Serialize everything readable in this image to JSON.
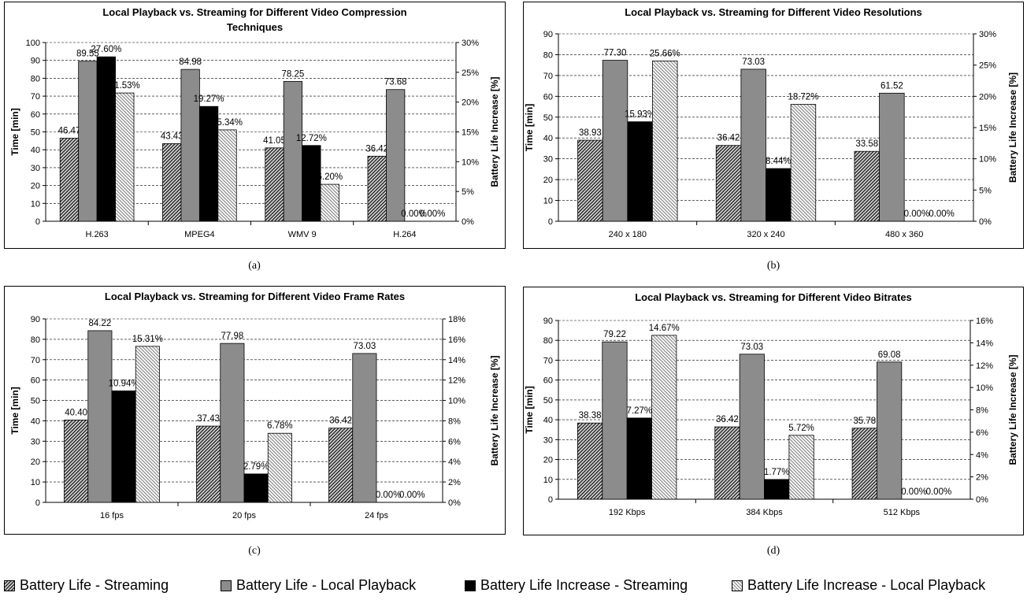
{
  "legend": [
    {
      "label": "Battery Life - Streaming",
      "pattern": "diag-dark"
    },
    {
      "label": "Battery Life - Local Playback",
      "pattern": "gray"
    },
    {
      "label": "Battery Life Increase - Streaming",
      "pattern": "black"
    },
    {
      "label": "Battery Life Increase - Local Playback",
      "pattern": "diag-light"
    }
  ],
  "colors": {
    "gray": "#8c8c8c",
    "black": "#000000",
    "dark_hatch": "#333333",
    "light_hatch": "#888888"
  },
  "captions": [
    "(a)",
    "(b)",
    "(c)",
    "(d)"
  ],
  "chart_data": [
    {
      "type": "bar",
      "title": [
        "Local Playback vs. Streaming for Different Video Compression",
        "Techniques"
      ],
      "ylabel": "Time [min]",
      "y2label": "Battery Life Increase [%]",
      "categories": [
        "H.263",
        "MPEG4",
        "WMV 9",
        "H.264"
      ],
      "ylim": [
        0,
        100
      ],
      "yticks": [
        0,
        10,
        20,
        30,
        40,
        50,
        60,
        70,
        80,
        90,
        100
      ],
      "y2lim": [
        0,
        30
      ],
      "y2ticks": [
        0,
        5,
        10,
        15,
        20,
        25,
        30
      ],
      "grid": true,
      "series": [
        {
          "name": "Battery Life - Streaming",
          "axis": "left",
          "values": [
            46.47,
            43.43,
            41.05,
            36.42
          ],
          "labels": [
            "46.47",
            "43.43",
            "41.05",
            "36.42"
          ]
        },
        {
          "name": "Battery Life - Local Playback",
          "axis": "left",
          "values": [
            89.55,
            84.98,
            78.25,
            73.68
          ],
          "labels": [
            "89.55",
            "84.98",
            "78.25",
            "73.68"
          ]
        },
        {
          "name": "Battery Life Increase - Streaming",
          "axis": "right",
          "values": [
            27.6,
            19.27,
            12.72,
            0
          ],
          "labels": [
            "27.60%",
            "19.27%",
            "12.72%",
            "0.00%"
          ]
        },
        {
          "name": "Battery Life Increase - Local Playback",
          "axis": "right",
          "values": [
            21.53,
            15.34,
            6.2,
            0
          ],
          "labels": [
            "21.53%",
            "15.34%",
            "6.20%",
            "0.00%"
          ]
        }
      ]
    },
    {
      "type": "bar",
      "title": [
        "Local Playback vs. Streaming for Different Video Resolutions"
      ],
      "ylabel": "Time [min]",
      "y2label": "Battery Life Increase [%]",
      "categories": [
        "240 x 180",
        "320 x 240",
        "480 x 360"
      ],
      "ylim": [
        0,
        90
      ],
      "yticks": [
        0,
        10,
        20,
        30,
        40,
        50,
        60,
        70,
        80,
        90
      ],
      "y2lim": [
        0,
        30
      ],
      "y2ticks": [
        0,
        5,
        10,
        15,
        20,
        25,
        30
      ],
      "grid": true,
      "series": [
        {
          "name": "Battery Life - Streaming",
          "axis": "left",
          "values": [
            38.93,
            36.42,
            33.58
          ],
          "labels": [
            "38.93",
            "36.42",
            "33.58"
          ]
        },
        {
          "name": "Battery Life - Local Playback",
          "axis": "left",
          "values": [
            77.3,
            73.03,
            61.52
          ],
          "labels": [
            "77.30",
            "73.03",
            "61.52"
          ]
        },
        {
          "name": "Battery Life Increase - Streaming",
          "axis": "right",
          "values": [
            15.93,
            8.44,
            0
          ],
          "labels": [
            "15.93%",
            "8.44%",
            "0.00%"
          ]
        },
        {
          "name": "Battery Life Increase - Local Playback",
          "axis": "right",
          "values": [
            25.66,
            18.72,
            0
          ],
          "labels": [
            "25.66%",
            "18.72%",
            "0.00%"
          ]
        }
      ]
    },
    {
      "type": "bar",
      "title": [
        "Local Playback vs. Streaming for Different Video Frame Rates"
      ],
      "ylabel": "Time [min]",
      "y2label": "Battery Life Increase [%]",
      "categories": [
        "16 fps",
        "20 fps",
        "24 fps"
      ],
      "ylim": [
        0,
        90
      ],
      "yticks": [
        0,
        10,
        20,
        30,
        40,
        50,
        60,
        70,
        80,
        90
      ],
      "y2lim": [
        0,
        18
      ],
      "y2ticks": [
        0,
        2,
        4,
        6,
        8,
        10,
        12,
        14,
        16,
        18
      ],
      "grid": true,
      "series": [
        {
          "name": "Battery Life - Streaming",
          "axis": "left",
          "values": [
            40.4,
            37.43,
            36.42
          ],
          "labels": [
            "40.40",
            "37.43",
            "36.42"
          ]
        },
        {
          "name": "Battery Life - Local Playback",
          "axis": "left",
          "values": [
            84.22,
            77.98,
            73.03
          ],
          "labels": [
            "84.22",
            "77.98",
            "73.03"
          ]
        },
        {
          "name": "Battery Life Increase - Streaming",
          "axis": "right",
          "values": [
            10.94,
            2.79,
            0
          ],
          "labels": [
            "10.94%",
            "2.79%",
            "0.00%"
          ]
        },
        {
          "name": "Battery Life Increase - Local Playback",
          "axis": "right",
          "values": [
            15.31,
            6.78,
            0
          ],
          "labels": [
            "15.31%",
            "6.78%",
            "0.00%"
          ]
        }
      ]
    },
    {
      "type": "bar",
      "title": [
        "Local Playback vs. Streaming for Different Video Bitrates"
      ],
      "ylabel": "Time [min]",
      "y2label": "Battery Life Increase [%]",
      "categories": [
        "192 Kbps",
        "384 Kbps",
        "512 Kbps"
      ],
      "ylim": [
        0,
        90
      ],
      "yticks": [
        0,
        10,
        20,
        30,
        40,
        50,
        60,
        70,
        80,
        90
      ],
      "y2lim": [
        0,
        16
      ],
      "y2ticks": [
        0,
        2,
        4,
        6,
        8,
        10,
        12,
        14,
        16
      ],
      "grid": true,
      "series": [
        {
          "name": "Battery Life - Streaming",
          "axis": "left",
          "values": [
            38.38,
            36.42,
            35.78
          ],
          "labels": [
            "38.38",
            "36.42",
            "35.78"
          ]
        },
        {
          "name": "Battery Life - Local Playback",
          "axis": "left",
          "values": [
            79.22,
            73.03,
            69.08
          ],
          "labels": [
            "79.22",
            "73.03",
            "69.08"
          ]
        },
        {
          "name": "Battery Life Increase - Streaming",
          "axis": "right",
          "values": [
            7.27,
            1.77,
            0
          ],
          "labels": [
            "7.27%",
            "1.77%",
            "0.00%"
          ]
        },
        {
          "name": "Battery Life Increase - Local Playback",
          "axis": "right",
          "values": [
            14.67,
            5.72,
            0
          ],
          "labels": [
            "14.67%",
            "5.72%",
            "0.00%"
          ]
        }
      ]
    }
  ]
}
